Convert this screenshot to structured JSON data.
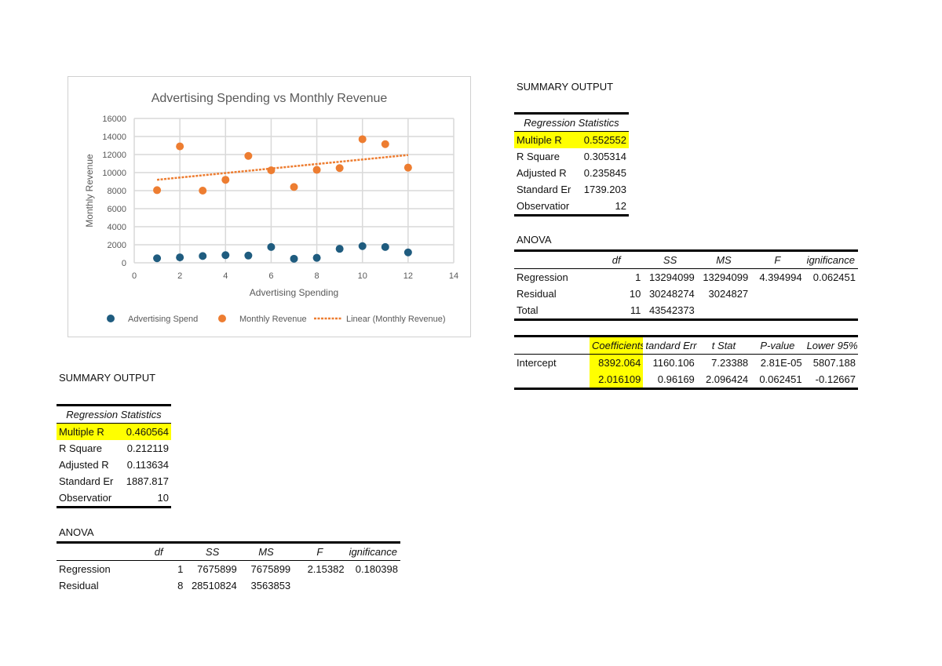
{
  "chart_data": {
    "type": "scatter",
    "title": "Advertising Spending vs Monthly Revenue",
    "xlabel": "Advertising Spending",
    "ylabel": "Monthly Revenue",
    "xlim": [
      0,
      14
    ],
    "ylim": [
      0,
      16000
    ],
    "xticks": [
      0,
      2,
      4,
      6,
      8,
      10,
      12,
      14
    ],
    "yticks": [
      0,
      2000,
      4000,
      6000,
      8000,
      10000,
      12000,
      14000,
      16000
    ],
    "grid": true,
    "legend": "bottom",
    "series": [
      {
        "name": "Advertising Spend",
        "color": "#1f5c7f",
        "x": [
          1,
          2,
          3,
          4,
          5,
          6,
          7,
          8,
          9,
          10,
          11,
          12
        ],
        "y": [
          500,
          600,
          750,
          850,
          800,
          1750,
          450,
          550,
          1550,
          1850,
          1750,
          1150
        ]
      },
      {
        "name": "Monthly Revenue",
        "color": "#ed7d31",
        "x": [
          1,
          2,
          3,
          4,
          5,
          6,
          7,
          8,
          9,
          10,
          11,
          12
        ],
        "y": [
          8050,
          12900,
          8000,
          9200,
          11850,
          10250,
          8400,
          10300,
          10500,
          13700,
          13150,
          10550
        ]
      }
    ],
    "trendline": {
      "name": "Linear (Monthly Revenue)",
      "color": "#ed7d31",
      "x": [
        1,
        12
      ],
      "y": [
        9200,
        11950
      ]
    }
  },
  "right": {
    "title": "SUMMARY OUTPUT",
    "reg_header": "Regression Statistics",
    "stats": [
      [
        "Multiple R",
        "0.552552"
      ],
      [
        "R Square",
        "0.305314"
      ],
      [
        "Adjusted R",
        "0.235845"
      ],
      [
        "Standard Er",
        "1739.203"
      ],
      [
        "Observatior",
        "12"
      ]
    ],
    "anova_title": "ANOVA",
    "anova_head": [
      "",
      "df",
      "SS",
      "MS",
      "F",
      "ignificance F"
    ],
    "anova_rows": [
      [
        "Regression",
        "1",
        "13294099",
        "13294099",
        "4.394994",
        "0.062451"
      ],
      [
        "Residual",
        "10",
        "30248274",
        "3024827",
        "",
        ""
      ],
      [
        "Total",
        "11",
        "43542373",
        "",
        "",
        ""
      ]
    ],
    "coef_head": [
      "",
      "Coefficients",
      "tandard Errc",
      "t Stat",
      "P-value",
      "Lower 95%"
    ],
    "coef_rows": [
      [
        "Intercept",
        "8392.064",
        "1160.106",
        "7.23388",
        "2.81E-05",
        "5807.188"
      ],
      [
        "",
        "2.016109",
        "0.96169",
        "2.096424",
        "0.062451",
        "-0.12667"
      ]
    ]
  },
  "left": {
    "title": "SUMMARY OUTPUT",
    "reg_header": "Regression Statistics",
    "stats": [
      [
        "Multiple R",
        "0.460564"
      ],
      [
        "R Square",
        "0.212119"
      ],
      [
        "Adjusted R",
        "0.113634"
      ],
      [
        "Standard Er",
        "1887.817"
      ],
      [
        "Observatior",
        "10"
      ]
    ],
    "anova_title": "ANOVA",
    "anova_head": [
      "",
      "df",
      "SS",
      "MS",
      "F",
      "ignificance F"
    ],
    "anova_rows": [
      [
        "Regression",
        "1",
        "7675899",
        "7675899",
        "2.15382",
        "0.180398"
      ],
      [
        "Residual",
        "8",
        "28510824",
        "3563853",
        "",
        ""
      ]
    ]
  }
}
